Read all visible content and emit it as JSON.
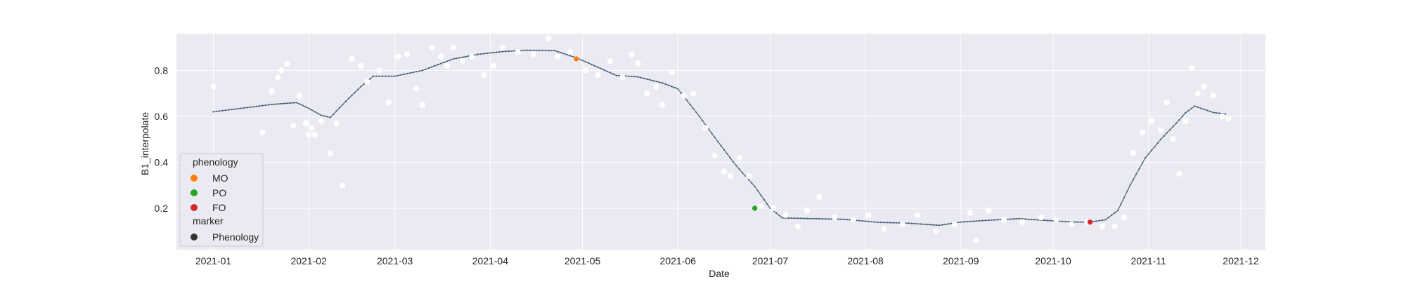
{
  "chart_data": {
    "type": "scatter",
    "xlabel": "Date",
    "ylabel": "B1_interpolate",
    "x_type": "date",
    "xlim": [
      "2020-12-20",
      "2021-12-09"
    ],
    "ylim": [
      0.02,
      0.96
    ],
    "x_ticks": [
      "2021-01-01",
      "2021-02-01",
      "2021-03-01",
      "2021-04-01",
      "2021-05-01",
      "2021-06-01",
      "2021-07-01",
      "2021-08-01",
      "2021-09-01",
      "2021-10-01",
      "2021-11-01",
      "2021-12-01"
    ],
    "x_tick_labels": [
      "2021-01",
      "2021-02",
      "2021-03",
      "2021-04",
      "2021-05",
      "2021-06",
      "2021-07",
      "2021-08",
      "2021-09",
      "2021-10",
      "2021-11",
      "2021-12"
    ],
    "y_ticks": [
      0.2,
      0.4,
      0.6,
      0.8
    ],
    "y_tick_labels": [
      "0.2",
      "0.4",
      "0.6",
      "0.8"
    ],
    "grid": true,
    "legend_placement": "lower-left",
    "colors": {
      "background": "#eaeaf2",
      "grid": "#ffffff",
      "curve": "#5f6f7e",
      "curve_dots": "#3d5f7a",
      "raw_points": "#ffffff",
      "MO": "#ff7f0e",
      "PO": "#2ca02c",
      "FO": "#d62728",
      "marker": "#333333"
    },
    "legend": {
      "title": "phenology",
      "entries": [
        {
          "label": "MO",
          "color": "#ff7f0e"
        },
        {
          "label": "PO",
          "color": "#2ca02c"
        },
        {
          "label": "FO",
          "color": "#d62728"
        }
      ],
      "marker_title": "marker",
      "marker_entries": [
        {
          "label": "Phenology",
          "color": "#333333"
        }
      ]
    },
    "series": [
      {
        "role": "interpolated-curve",
        "x": [
          "2021-01-01",
          "2021-01-10",
          "2021-01-20",
          "2021-01-28",
          "2021-02-01",
          "2021-02-05",
          "2021-02-08",
          "2021-02-13",
          "2021-02-18",
          "2021-02-22",
          "2021-03-01",
          "2021-03-10",
          "2021-03-20",
          "2021-03-28",
          "2021-04-05",
          "2021-04-13",
          "2021-04-22",
          "2021-04-29",
          "2021-05-05",
          "2021-05-12",
          "2021-05-19",
          "2021-05-27",
          "2021-06-01",
          "2021-06-08",
          "2021-06-14",
          "2021-06-20",
          "2021-06-26",
          "2021-07-01",
          "2021-07-05",
          "2021-07-15",
          "2021-07-25",
          "2021-08-05",
          "2021-08-15",
          "2021-08-25",
          "2021-09-01",
          "2021-09-10",
          "2021-09-20",
          "2021-10-01",
          "2021-10-08",
          "2021-10-13",
          "2021-10-18",
          "2021-10-22",
          "2021-10-26",
          "2021-10-31",
          "2021-11-05",
          "2021-11-10",
          "2021-11-13",
          "2021-11-16",
          "2021-11-22",
          "2021-11-26"
        ],
        "y": [
          0.62,
          0.635,
          0.652,
          0.66,
          0.635,
          0.605,
          0.595,
          0.665,
          0.73,
          0.775,
          0.775,
          0.8,
          0.85,
          0.87,
          0.882,
          0.888,
          0.886,
          0.855,
          0.82,
          0.778,
          0.772,
          0.745,
          0.72,
          0.6,
          0.49,
          0.385,
          0.295,
          0.2,
          0.158,
          0.155,
          0.152,
          0.139,
          0.135,
          0.126,
          0.14,
          0.148,
          0.155,
          0.145,
          0.14,
          0.14,
          0.15,
          0.19,
          0.3,
          0.42,
          0.5,
          0.57,
          0.615,
          0.645,
          0.617,
          0.61
        ]
      },
      {
        "role": "raw-observations",
        "x": [
          "2021-01-01",
          "2021-01-17",
          "2021-01-20",
          "2021-01-22",
          "2021-01-23",
          "2021-01-25",
          "2021-01-27",
          "2021-01-29",
          "2021-01-31",
          "2021-02-01",
          "2021-02-02",
          "2021-02-03",
          "2021-02-05",
          "2021-02-08",
          "2021-02-10",
          "2021-02-12",
          "2021-02-15",
          "2021-02-18",
          "2021-02-20",
          "2021-02-24",
          "2021-02-27",
          "2021-03-02",
          "2021-03-05",
          "2021-03-08",
          "2021-03-10",
          "2021-03-13",
          "2021-03-16",
          "2021-03-18",
          "2021-03-20",
          "2021-03-23",
          "2021-03-26",
          "2021-03-30",
          "2021-04-02",
          "2021-04-05",
          "2021-04-10",
          "2021-04-15",
          "2021-04-20",
          "2021-04-23",
          "2021-04-27",
          "2021-05-02",
          "2021-05-06",
          "2021-05-10",
          "2021-05-14",
          "2021-05-17",
          "2021-05-19",
          "2021-05-22",
          "2021-05-25",
          "2021-05-27",
          "2021-05-30",
          "2021-06-03",
          "2021-06-06",
          "2021-06-10",
          "2021-06-13",
          "2021-06-16",
          "2021-06-18",
          "2021-06-21",
          "2021-06-24",
          "2021-06-28",
          "2021-07-02",
          "2021-07-06",
          "2021-07-10",
          "2021-07-13",
          "2021-07-17",
          "2021-07-22",
          "2021-07-28",
          "2021-08-02",
          "2021-08-07",
          "2021-08-13",
          "2021-08-18",
          "2021-08-24",
          "2021-08-30",
          "2021-09-04",
          "2021-09-06",
          "2021-09-10",
          "2021-09-15",
          "2021-09-21",
          "2021-09-27",
          "2021-10-02",
          "2021-10-07",
          "2021-10-12",
          "2021-10-17",
          "2021-10-21",
          "2021-10-24",
          "2021-10-27",
          "2021-10-30",
          "2021-11-02",
          "2021-11-05",
          "2021-11-07",
          "2021-11-09",
          "2021-11-11",
          "2021-11-13",
          "2021-11-15",
          "2021-11-17",
          "2021-11-19",
          "2021-11-22",
          "2021-11-25",
          "2021-11-27"
        ],
        "y": [
          0.73,
          0.53,
          0.71,
          0.77,
          0.8,
          0.83,
          0.56,
          0.69,
          0.57,
          0.52,
          0.55,
          0.52,
          0.58,
          0.44,
          0.57,
          0.3,
          0.85,
          0.82,
          0.75,
          0.8,
          0.66,
          0.86,
          0.87,
          0.72,
          0.65,
          0.9,
          0.86,
          0.82,
          0.9,
          0.84,
          0.86,
          0.78,
          0.82,
          0.9,
          0.88,
          0.87,
          0.94,
          0.86,
          0.88,
          0.8,
          0.78,
          0.84,
          0.77,
          0.87,
          0.83,
          0.7,
          0.73,
          0.65,
          0.79,
          0.69,
          0.7,
          0.55,
          0.43,
          0.36,
          0.34,
          0.42,
          0.34,
          0.21,
          0.2,
          0.17,
          0.12,
          0.19,
          0.25,
          0.16,
          0.15,
          0.17,
          0.11,
          0.13,
          0.17,
          0.1,
          0.13,
          0.18,
          0.06,
          0.19,
          0.15,
          0.14,
          0.16,
          0.15,
          0.13,
          0.14,
          0.12,
          0.12,
          0.16,
          0.44,
          0.53,
          0.58,
          0.54,
          0.66,
          0.5,
          0.35,
          0.58,
          0.81,
          0.7,
          0.73,
          0.69,
          0.6,
          0.59
        ]
      }
    ],
    "phenology_points": [
      {
        "label": "MO",
        "x": "2021-04-29",
        "y": 0.85,
        "color": "#ff7f0e"
      },
      {
        "label": "PO",
        "x": "2021-06-26",
        "y": 0.2,
        "color": "#2ca02c"
      },
      {
        "label": "FO",
        "x": "2021-10-13",
        "y": 0.14,
        "color": "#d62728"
      }
    ]
  }
}
